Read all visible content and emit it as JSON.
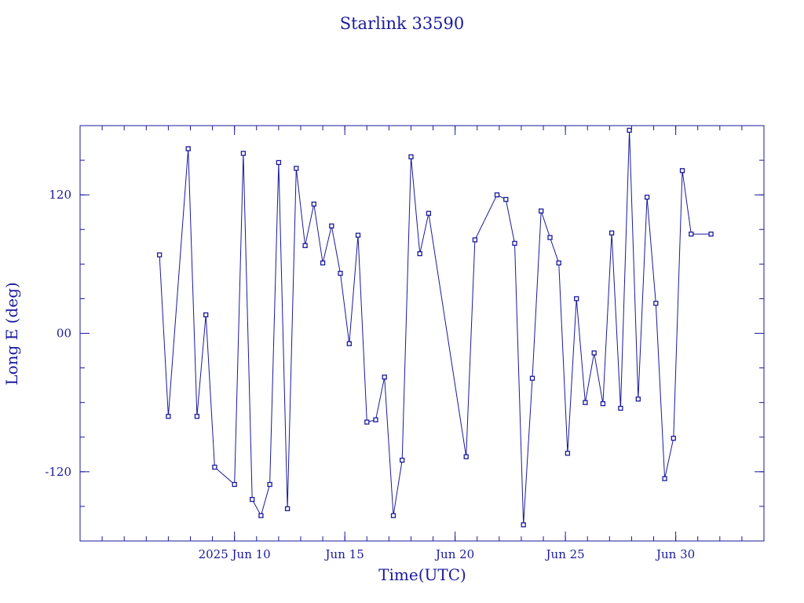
{
  "chart_data": {
    "type": "line",
    "title": "Starlink 33590",
    "xlabel": "Time(UTC)",
    "ylabel": "Long E (deg)",
    "xlim": [
      "2025-06-03",
      "2025-07-04"
    ],
    "ylim": [
      -180,
      180
    ],
    "xticks": [
      {
        "x": "2025-06-10",
        "label": "2025 Jun 10"
      },
      {
        "x": "2025-06-15",
        "label": "Jun 15"
      },
      {
        "x": "2025-06-20",
        "label": "Jun 20"
      },
      {
        "x": "2025-06-25",
        "label": "Jun 25"
      },
      {
        "x": "2025-06-30",
        "label": "Jun 30"
      }
    ],
    "yticks": [
      {
        "y": 120,
        "label": "120"
      },
      {
        "y": 0,
        "label": "00"
      },
      {
        "y": -120,
        "label": "-120"
      }
    ],
    "grid": false,
    "legend": "none",
    "color": "#1a1a9c",
    "marker": "square",
    "series": [
      {
        "x": [
          "2025-06-06 14:24",
          "2025-06-07 00:00",
          "2025-06-07 21:36",
          "2025-06-08 07:12",
          "2025-06-08 16:48",
          "2025-06-09 02:24",
          "2025-06-10 00:00",
          "2025-06-10 09:36",
          "2025-06-10 19:12",
          "2025-06-11 04:48",
          "2025-06-11 14:24",
          "2025-06-12 00:00",
          "2025-06-12 09:36",
          "2025-06-12 19:12",
          "2025-06-13 04:48",
          "2025-06-13 14:24",
          "2025-06-14 00:00",
          "2025-06-14 09:36",
          "2025-06-14 19:12",
          "2025-06-15 04:48",
          "2025-06-15 14:24",
          "2025-06-16 00:00",
          "2025-06-16 09:36",
          "2025-06-16 19:12",
          "2025-06-17 04:48",
          "2025-06-17 14:24",
          "2025-06-18 00:00",
          "2025-06-18 09:36",
          "2025-06-18 19:12",
          "2025-06-20 12:00",
          "2025-06-20 21:36",
          "2025-06-21 21:36",
          "2025-06-22 07:12",
          "2025-06-22 16:48",
          "2025-06-23 02:24",
          "2025-06-23 12:00",
          "2025-06-23 21:36",
          "2025-06-24 07:12",
          "2025-06-24 16:48",
          "2025-06-25 02:24",
          "2025-06-25 12:00",
          "2025-06-25 21:36",
          "2025-06-26 07:12",
          "2025-06-26 16:48",
          "2025-06-27 02:24",
          "2025-06-27 12:00",
          "2025-06-27 21:36",
          "2025-06-28 07:12",
          "2025-06-28 16:48",
          "2025-06-29 02:24",
          "2025-06-29 12:00",
          "2025-06-29 21:36",
          "2025-06-30 07:12",
          "2025-06-30 16:48",
          "2025-07-01 14:24"
        ],
        "y": [
          68,
          -72,
          160,
          -72,
          16,
          -116,
          -131,
          156,
          -144,
          -158,
          -131,
          148,
          -152,
          143,
          76,
          112,
          61,
          93,
          52,
          -9,
          85,
          -77,
          -75,
          -38,
          -158,
          -110,
          153,
          69,
          104,
          -107,
          81,
          120,
          116,
          78,
          -166,
          -39,
          106,
          83,
          61,
          -104,
          30,
          -60,
          -17,
          -61,
          87,
          -65,
          176,
          -57,
          118,
          26,
          -126,
          -91,
          141,
          86,
          86
        ]
      }
    ]
  }
}
